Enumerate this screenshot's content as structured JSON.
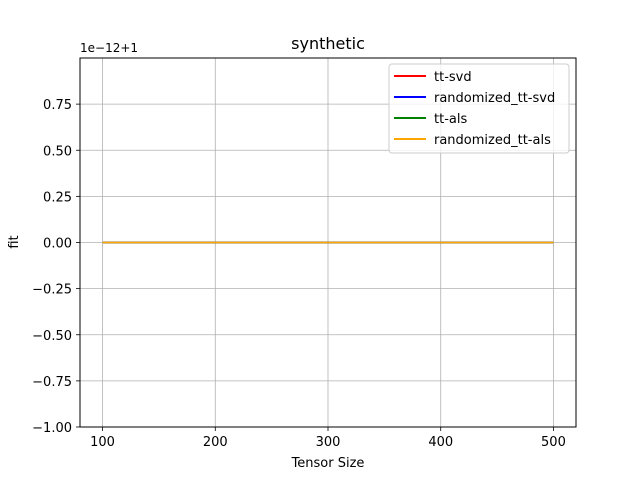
{
  "chart_data": {
    "type": "line",
    "title": "synthetic",
    "xlabel": "Tensor Size",
    "ylabel": "fit",
    "offset_text": "1e−12+1",
    "xlim": [
      80,
      520
    ],
    "ylim": [
      -1.0,
      1.0
    ],
    "xticks": [
      100,
      200,
      300,
      400,
      500
    ],
    "xtick_labels": [
      "100",
      "200",
      "300",
      "400",
      "500"
    ],
    "yticks": [
      -1.0,
      -0.75,
      -0.5,
      -0.25,
      0.0,
      0.25,
      0.5,
      0.75
    ],
    "ytick_labels": [
      "−1.00",
      "−0.75",
      "−0.50",
      "−0.25",
      "0.00",
      "0.25",
      "0.50",
      "0.75"
    ],
    "grid": true,
    "legend_position": "top-right",
    "x": [
      100,
      200,
      300,
      400,
      500
    ],
    "series": [
      {
        "name": "tt-svd",
        "color": "#ff0000",
        "values": [
          0,
          0,
          0,
          0,
          0
        ]
      },
      {
        "name": "randomized_tt-svd",
        "color": "#0000ff",
        "values": [
          0,
          0,
          0,
          0,
          0
        ]
      },
      {
        "name": "tt-als",
        "color": "#008000",
        "values": [
          0,
          0,
          0,
          0,
          0
        ]
      },
      {
        "name": "randomized_tt-als",
        "color": "#ffa500",
        "values": [
          0,
          0,
          0,
          0,
          0
        ]
      }
    ]
  }
}
